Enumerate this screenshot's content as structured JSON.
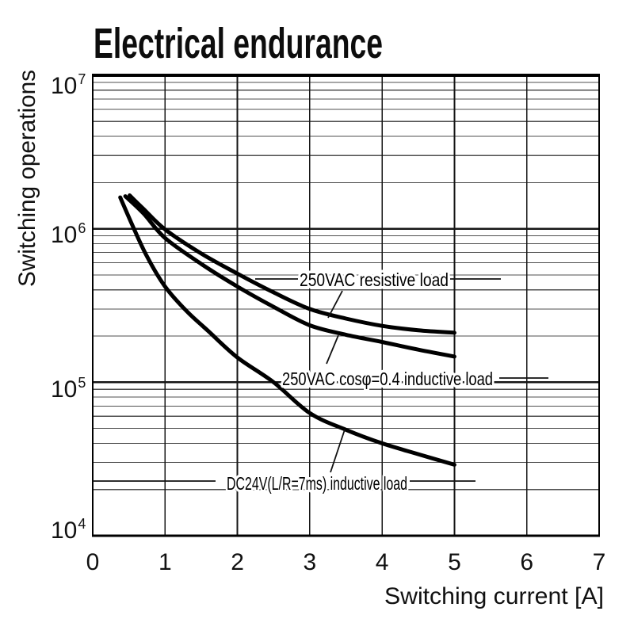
{
  "page": {
    "background": "#ffffff"
  },
  "chart_data": {
    "type": "line",
    "title": "Electrical endurance",
    "xlabel": "Switching current [A]",
    "ylabel": "Switching operations",
    "x_axis": {
      "min": 0,
      "max": 7,
      "ticks": [
        0,
        1,
        2,
        3,
        4,
        5,
        6,
        7
      ]
    },
    "y_axis": {
      "scale": "log",
      "min_exponent": 4,
      "max_exponent": 7,
      "tick_exponents": [
        7,
        6,
        5,
        4
      ],
      "tick_base": "10",
      "minor_gridlines": true
    },
    "grid": {
      "horizontal": "log decades with minor lines 2-9",
      "vertical": "every 1 A"
    },
    "legend_style": "inline curve labels with leader lines",
    "series": [
      {
        "name": "250VAC resistive load",
        "points": [
          [
            0.51,
            1650000
          ],
          [
            0.7,
            1350000
          ],
          [
            1,
            990000
          ],
          [
            1.5,
            690000
          ],
          [
            2,
            510000
          ],
          [
            2.5,
            385000
          ],
          [
            3,
            300000
          ],
          [
            3.5,
            260000
          ],
          [
            4,
            233000
          ],
          [
            4.5,
            218000
          ],
          [
            5,
            210000
          ]
        ]
      },
      {
        "name": "250VAC cosφ=0.4 inductive load",
        "points": [
          [
            0.45,
            1630000
          ],
          [
            0.7,
            1260000
          ],
          [
            1,
            870000
          ],
          [
            1.5,
            590000
          ],
          [
            2,
            420000
          ],
          [
            2.5,
            310000
          ],
          [
            3,
            235000
          ],
          [
            3.5,
            204000
          ],
          [
            4,
            183000
          ],
          [
            4.5,
            163000
          ],
          [
            5,
            147000
          ]
        ]
      },
      {
        "name": "DC24V(L/R=7ms) inductive load",
        "points": [
          [
            0.38,
            1600000
          ],
          [
            0.55,
            1050000
          ],
          [
            0.75,
            660000
          ],
          [
            1,
            420000
          ],
          [
            1.3,
            290000
          ],
          [
            1.6,
            215000
          ],
          [
            2,
            145000
          ],
          [
            2.5,
            100000
          ],
          [
            3,
            63000
          ],
          [
            3.5,
            49000
          ],
          [
            4,
            40000
          ],
          [
            4.5,
            34000
          ],
          [
            5,
            29000
          ]
        ]
      }
    ]
  },
  "colors": {
    "background": "#ffffff",
    "curve": "#000000",
    "grid_major": "#161616",
    "grid_minor": "#4f4f4f",
    "text": "#111111"
  }
}
